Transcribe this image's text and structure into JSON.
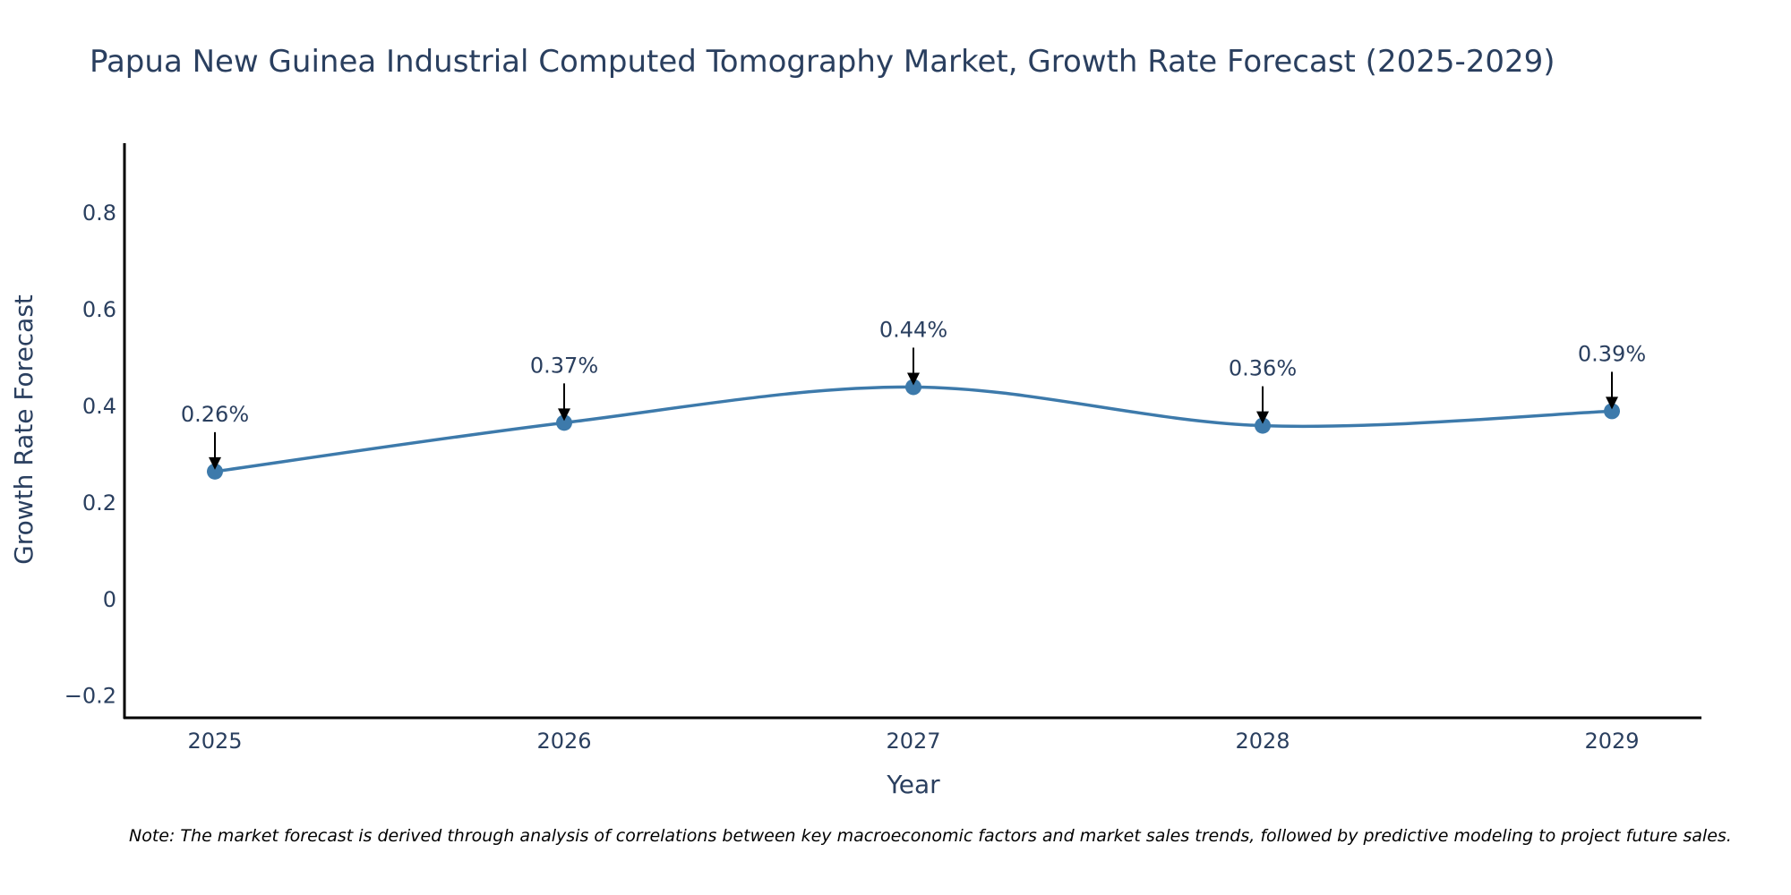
{
  "chart_data": {
    "type": "line",
    "title": "Papua New Guinea Industrial Computed Tomography Market, Growth Rate Forecast (2025-2029)",
    "xlabel": "Year",
    "ylabel": "Growth Rate Forecast",
    "x": [
      "2025",
      "2026",
      "2027",
      "2028",
      "2029"
    ],
    "series": [
      {
        "name": "Growth Rate Forecast",
        "values": [
          0.265,
          0.366,
          0.44,
          0.36,
          0.39
        ],
        "labels": [
          "0.26%",
          "0.37%",
          "0.44%",
          "0.36%",
          "0.39%"
        ],
        "color": "#3d7aab",
        "line_shape": "spline"
      }
    ],
    "yticks": [
      -0.2,
      0,
      0.2,
      0.4,
      0.6,
      0.8
    ],
    "ytick_labels": [
      "−0.2",
      "0",
      "0.2",
      "0.4",
      "0.6",
      "0.8"
    ],
    "ylim": [
      -0.245,
      0.945
    ],
    "grid": false,
    "legend": "none",
    "note": "Note: The market forecast is derived through analysis of correlations between key macroeconomic factors and market sales trends, followed by predictive modeling to project future sales."
  }
}
